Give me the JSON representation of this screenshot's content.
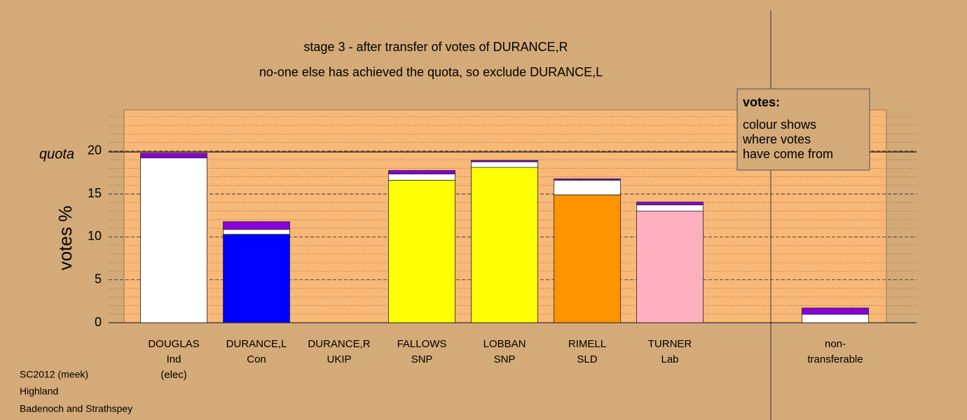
{
  "chart_data": {
    "type": "bar",
    "stacked": true,
    "title": "stage 3 - after transfer of votes of DURANCE,R",
    "subtitle": "no-one else has achieved the quota, so exclude DURANCE,L",
    "y_label": "votes %",
    "quota_label": "quota",
    "quota": 19.9,
    "categories": [
      [
        "DOUGLAS",
        "Ind",
        "(elec)"
      ],
      [
        "DURANCE,L",
        "Con"
      ],
      [
        "DURANCE,R",
        "UKIP"
      ],
      [
        "FALLOWS",
        "SNP"
      ],
      [
        "LOBBAN",
        "SNP"
      ],
      [
        "RIMELL",
        "SLD"
      ],
      [
        "TURNER",
        "Lab"
      ],
      null,
      [
        "non-",
        "transferable"
      ]
    ],
    "series": [
      {
        "colors": [
          "#ffffff",
          "#0000ff",
          "#8800dd",
          "#ffff00",
          "#ffff00",
          "#ff9400",
          "#ffb0c0",
          null,
          "#ffffff"
        ],
        "values": [
          19.2,
          10.3,
          0,
          16.6,
          18.1,
          14.9,
          13.0,
          null,
          0
        ]
      },
      {
        "color": "#ffffff",
        "values": [
          0,
          0.57,
          0,
          0.73,
          0.65,
          1.7,
          0.73,
          null,
          0.98
        ]
      },
      {
        "color": "#8800dd",
        "values": [
          0.55,
          0.9,
          0,
          0.41,
          0.16,
          0.16,
          0.33,
          null,
          0.73
        ]
      }
    ],
    "ylim": [
      0,
      24.8
    ],
    "yticks": [
      0,
      5,
      10,
      15,
      20
    ],
    "minor_yticks": [
      1,
      2,
      3,
      4,
      6,
      7,
      8,
      9,
      11,
      12,
      13,
      14,
      16,
      17,
      18,
      19,
      21,
      22,
      23,
      24
    ],
    "legend": {
      "title": "votes:",
      "lines": [
        "colour shows",
        "where votes",
        "have come from"
      ]
    },
    "footer": [
      "SC2012 (meek)",
      "Highland",
      "Badenoch and Strathspey"
    ]
  }
}
